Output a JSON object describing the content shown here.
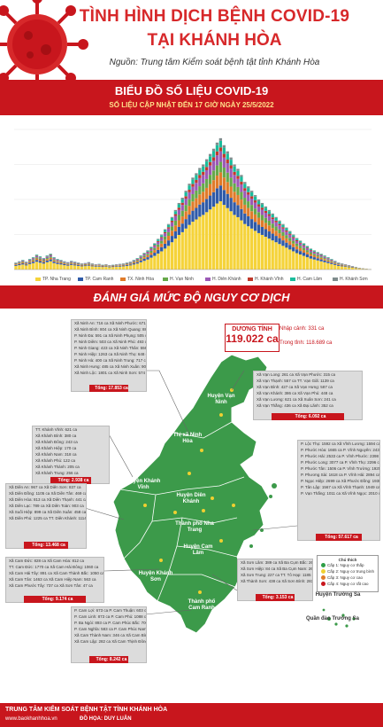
{
  "header": {
    "title_line1": "TÌNH HÌNH DỊCH BỆNH COVID-19",
    "title_line2": "TẠI KHÁNH HÒA",
    "source": "Nguồn: Trung tâm Kiểm soát bệnh tật tỉnh Khánh Hòa"
  },
  "chart_section": {
    "title": "BIỂU ĐỒ SỐ LIỆU COVID-19",
    "updated": "SỐ LIỆU CẬP NHẬT ĐẾN 17 GIỜ NGÀY 25/5/2022"
  },
  "chart_data": {
    "type": "bar",
    "stacked": true,
    "ylim": [
      0,
      1600
    ],
    "series": [
      {
        "name": "TP. Nha Trang",
        "color": "#f5d33a"
      },
      {
        "name": "TP. Cam Ranh",
        "color": "#2f5aa8"
      },
      {
        "name": "TX. Ninh Hòa",
        "color": "#e07b2a"
      },
      {
        "name": "H. Vạn Ninh",
        "color": "#66a84a"
      },
      {
        "name": "H. Diên Khánh",
        "color": "#9b59b6"
      },
      {
        "name": "H. Khánh Vĩnh",
        "color": "#c0392b"
      },
      {
        "name": "H. Cam Lâm",
        "color": "#1abc9c"
      },
      {
        "name": "H. Khánh Sơn",
        "color": "#7f8c8d"
      }
    ],
    "totals": [
      80,
      95,
      110,
      90,
      120,
      140,
      170,
      150,
      130,
      160,
      180,
      140,
      120,
      110,
      95,
      85,
      100,
      90,
      80,
      70,
      75,
      85,
      70,
      60,
      65,
      55,
      60,
      50,
      55,
      60,
      65,
      70,
      80,
      90,
      110,
      130,
      160,
      190,
      220,
      260,
      300,
      350,
      400,
      460,
      520,
      600,
      680,
      760,
      820,
      900,
      980,
      1050,
      1100,
      1160,
      1200,
      1260,
      1320,
      1380,
      1450,
      1500,
      1420,
      1350,
      1280,
      1200,
      1150,
      1080,
      1000,
      950,
      900,
      850,
      800,
      760,
      720,
      680,
      640,
      600,
      560,
      520,
      480,
      440,
      400,
      360,
      330,
      300,
      270,
      240,
      220,
      200,
      180,
      160,
      140,
      120,
      100,
      80,
      70,
      60,
      50,
      40,
      30,
      20,
      15,
      10,
      5
    ]
  },
  "risk_section": {
    "title": "ĐÁNH GIÁ MỨC ĐỘ NGUY CƠ DỊCH"
  },
  "positive": {
    "label": "DƯƠNG TÍNH",
    "value": "119.022 ca",
    "imported": "Nhập cảnh: 331 ca",
    "domestic": "Trong tỉnh: 118.689 ca"
  },
  "districts": {
    "van_ninh": "Huyện Vạn Ninh",
    "ninh_hoa": "Thị xã Ninh Hòa",
    "khanh_vinh": "Huyện Khánh Vĩnh",
    "dien_khanh": "Huyện Diên Khánh",
    "nha_trang": "Thành phố Nha Trang",
    "cam_lam": "Huyện Cam Lâm",
    "khanh_son": "Huyện Khánh Sơn",
    "cam_ranh": "Thành phố Cam Ranh",
    "truong_sa": "Huyện Trường Sa",
    "quan_dao": "Quần đảo Trường Sa"
  },
  "boxes": {
    "ninh_hoa": {
      "rows": [
        "Xã Ninh An: 716 ca   Xã Ninh Phước: 671 ca",
        "Xã Ninh Bình: 804 ca   Xã Ninh Quang: 881 ca",
        "P. Ninh Đa: 591 ca   Xã Ninh Phụng: 505 ca",
        "P. Ninh Diêm: 503 ca   Xã Ninh Phú: 493 ca",
        "P. Ninh Giang: 423 ca   Xã Ninh Thân: 556 ca",
        "P. Ninh Hiệp: 1263 ca   Xã Ninh Thọ: 648 ca",
        "P. Ninh Hà: 400 ca   Xã Ninh Trung: 717 ca",
        "Xã Ninh Hưng: 485 ca   Xã Ninh Xuân: 909 ca",
        "Xã Ninh Lộc: 1801 ca   Xã Ninh Sơn: 574 ca"
      ],
      "total": "Tổng: 17.853 ca"
    },
    "van_ninh": {
      "rows": [
        "Xã Vạn Long: 261 ca   Xã Vạn Phước: 315 ca",
        "Xã Vạn Thạnh: 557 ca   TT. Vạn Giã: 1139 ca",
        "Xã Vạn Bình: 427 ca   Xã Vạn Hưng: 587 ca",
        "Xã Vạn Khánh: 386 ca   Xã Vạn Phú: 448 ca",
        "Xã Vạn Lương: 621 ca   Xã Xuân Sơn: 241 ca",
        "Xã Vạn Thắng: 436 ca   Xã Đại Lãnh: 352 ca"
      ],
      "total": "Tổng: 6.092 ca"
    },
    "khanh_vinh": {
      "rows": [
        "TT. Khánh Vĩnh: 621 ca",
        "Xã Khánh Bình: 380 ca",
        "Xã Khánh Đông: 243 ca",
        "Xã Khánh Hiệp: 170 ca",
        "Xã Khánh Nam: 318 ca",
        "Xã Khánh Phú: 122 ca",
        "Xã Khánh Thành: 205 ca",
        "Xã Khánh Trung: 256 ca"
      ],
      "total": "Tổng: 2.938 ca"
    },
    "dien_khanh": {
      "rows": [
        "Xã Diên An: 967 ca   Xã Diên Sơn: 837 ca",
        "Xã Diên Đồng: 1105 ca   Xã Diên Tân: 469 ca",
        "Xã Diên Hòa: 813 ca   Xã Diên Thạnh: 441 ca",
        "Xã Diên Lạc: 789 ca   Xã Diên Toàn: 903 ca",
        "Xã Suối Hiệp: 899 ca   Xã Diên Xuân: 458 ca",
        "Xã Diên Phú: 1225 ca   TT. Diên Khánh: 1114 ca"
      ],
      "total": "Tổng: 13.468 ca"
    },
    "nha_trang": {
      "rows": [
        "P. Lộc Thọ: 1592 ca   Xã Vĩnh Lương: 1594 ca",
        "P. Phước Hòa: 1665 ca   P. Vĩnh Nguyên: 2435 ca",
        "P. Phước Hải: 2533 ca   P. Vĩnh Phước: 2398 ca",
        "P. Phước Long: 3077 ca   P. Vĩnh Thọ: 2296 ca",
        "P. Phước Tân: 1506 ca   P. Vĩnh Trường: 1925 ca",
        "P. Phương Sài: 1618 ca   P. Vĩnh Hải: 2894 ca",
        "P. Ngọc Hiệp: 2699 ca   Xã Phước Đồng: 1938 ca",
        "P. Tân Lập: 1567 ca   Xã Vĩnh Thạnh: 1949 ca",
        "P. Vạn Thắng: 1011 ca   Xã Vĩnh Ngọc: 2010 ca"
      ],
      "total": "Tổng: 57.617 ca"
    },
    "cam_lam": {
      "rows": [
        "Xã Cam Đức: 828 ca   Xã Cam Hòa: 812 ca",
        "TT. Cam Đức: 1770 ca   Xã Cam Hải Đông: 1060 ca",
        "Xã Cam Hải Tây: 891 ca   Xã Cam Thành Bắc: 1050 ca",
        "Xã Cam Tân: 1463 ca   Xã Cam Hiệp Nam: 563 ca",
        "Xã Cam Phước Tây: 737 ca   Xã Sơn Tân: 47 ca"
      ],
      "total": "Tổng: 9.174 ca"
    },
    "khanh_son": {
      "rows": [
        "Xã Sơn Lâm: 389 ca   Xã Ba Cụm Bắc: 268 ca",
        "Xã Sơn Hiệp: 84 ca   Xã Ba Cụm Nam: 263 ca",
        "Xã Sơn Trung: 227 ca   TT. Tô Hạp: 1185 ca",
        "Xã Thành Sơn: 438 ca   Xã Sơn Bình: 283 ca"
      ],
      "total": "Tổng: 3.153 ca"
    },
    "cam_ranh": {
      "rows": [
        "P. Cam Lợi: 673 ca   P. Cam Thuận: 603 ca",
        "P. Cam Linh: 873 ca   P. Cam Phú: 1088 ca",
        "P. Ba Ngòi: 893 ca   P. Cam Phúc Bắc: 700 ca",
        "P. Cam Nghĩa: 583 ca   P. Cam Phúc Nam: 716 ca",
        "Xã Cam Thành Nam: 346 ca   Xã Cam Bình: 385 ca",
        "Xã Cam Lập: 282 ca   Xã Cam Thịnh Đông: 703 ca"
      ],
      "total": "Tổng: 8.242 ca"
    }
  },
  "risk_legend": {
    "title": "Chú thích",
    "items": [
      {
        "label": "Cấp 1: Nguy cơ thấp",
        "color": "#2e9e47"
      },
      {
        "label": "Cấp 2: Nguy cơ trung bình",
        "color": "#f0d030"
      },
      {
        "label": "Cấp 3: Nguy cơ cao",
        "color": "#e07b2a"
      },
      {
        "label": "Cấp 4: Nguy cơ rất cao",
        "color": "#c8161d"
      }
    ]
  },
  "footer": {
    "org": "TRUNG TÂM KIỂM SOÁT BỆNH TẬT TỈNH KHÁNH HÒA",
    "site": "www.baokhanhhoa.vn",
    "design": "ĐỒ HỌA: DUY LUÂN"
  }
}
